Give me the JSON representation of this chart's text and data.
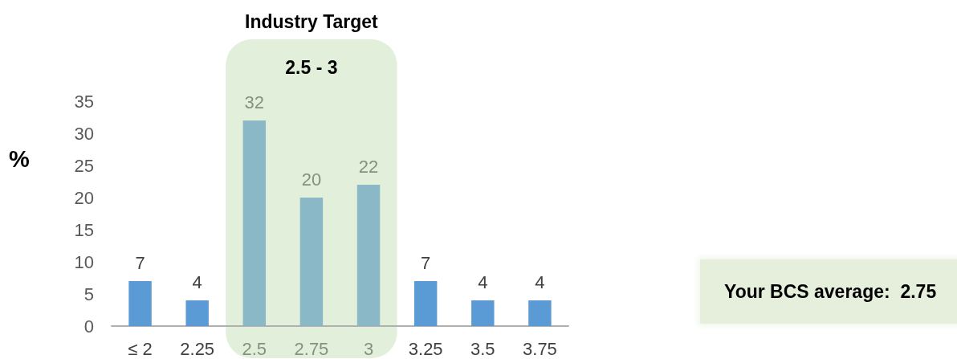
{
  "chart_data": {
    "type": "bar",
    "title": "Industry Target",
    "ylabel": "%",
    "categories": [
      "≤ 2",
      "2.25",
      "2.5",
      "2.75",
      "3",
      "3.25",
      "3.5",
      "3.75"
    ],
    "values": [
      7,
      4,
      32,
      20,
      22,
      7,
      4,
      4
    ],
    "colors": [
      "#5b9bd5",
      "#5b9bd5",
      "#8ab8c7",
      "#8ab8c7",
      "#8ab8c7",
      "#5b9bd5",
      "#5b9bd5",
      "#5b9bd5"
    ],
    "ylim": [
      0,
      35
    ],
    "yticks": [
      0,
      5,
      10,
      15,
      20,
      25,
      30,
      35
    ],
    "data_labels": true,
    "bands": [
      {
        "axis": "x",
        "from": "2.5",
        "to": "3",
        "label": "2.5 - 3",
        "color": "#e2efda"
      }
    ],
    "annotations": [
      "Your BCS average:  2.75"
    ]
  }
}
